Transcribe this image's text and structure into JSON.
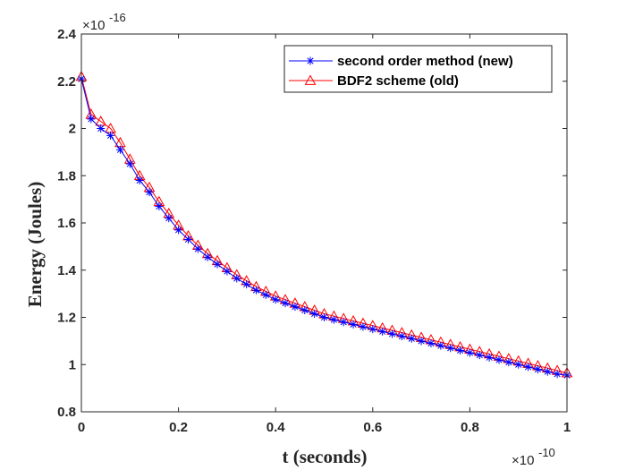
{
  "chart_data": {
    "type": "line",
    "xlabel": "t (seconds)",
    "ylabel": "Energy (Joules)",
    "x_exponent": "×10",
    "x_exponent_power": "-10",
    "y_exponent": "×10",
    "y_exponent_power": "-16",
    "xlim": [
      0,
      1
    ],
    "ylim": [
      0.8,
      2.4
    ],
    "x_ticks": [
      0,
      0.2,
      0.4,
      0.6,
      0.8,
      1
    ],
    "x_tick_labels": [
      "0",
      "0.2",
      "0.4",
      "0.6",
      "0.8",
      "1"
    ],
    "y_ticks": [
      0.8,
      1,
      1.2,
      1.4,
      1.6,
      1.8,
      2,
      2.2,
      2.4
    ],
    "y_tick_labels": [
      "0.8",
      "1",
      "1.2",
      "1.4",
      "1.6",
      "1.8",
      "2",
      "2.2",
      "2.4"
    ],
    "grid": false,
    "legend_position": "top-right",
    "x": [
      0,
      0.02,
      0.04,
      0.06,
      0.08,
      0.1,
      0.12,
      0.14,
      0.16,
      0.18,
      0.2,
      0.22,
      0.24,
      0.26,
      0.28,
      0.3,
      0.32,
      0.34,
      0.36,
      0.38,
      0.4,
      0.42,
      0.44,
      0.46,
      0.48,
      0.5,
      0.52,
      0.54,
      0.56,
      0.58,
      0.6,
      0.62,
      0.64,
      0.66,
      0.68,
      0.7,
      0.72,
      0.74,
      0.76,
      0.78,
      0.8,
      0.82,
      0.84,
      0.86,
      0.88,
      0.9,
      0.92,
      0.94,
      0.96,
      0.98,
      1
    ],
    "series": [
      {
        "name": "second order method (new)",
        "color": "#0000ff",
        "marker": "asterisk",
        "values": [
          2.21,
          2.04,
          2.0,
          1.97,
          1.91,
          1.85,
          1.78,
          1.73,
          1.67,
          1.62,
          1.57,
          1.53,
          1.49,
          1.455,
          1.425,
          1.395,
          1.365,
          1.34,
          1.315,
          1.295,
          1.275,
          1.26,
          1.245,
          1.23,
          1.215,
          1.2,
          1.19,
          1.18,
          1.17,
          1.16,
          1.15,
          1.14,
          1.13,
          1.12,
          1.11,
          1.1,
          1.09,
          1.08,
          1.07,
          1.06,
          1.05,
          1.04,
          1.03,
          1.02,
          1.01,
          1.0,
          0.99,
          0.98,
          0.97,
          0.96,
          0.955
        ]
      },
      {
        "name": "BDF2 scheme (old)",
        "color": "#ff0000",
        "marker": "triangle",
        "values": [
          2.22,
          2.06,
          2.03,
          2.0,
          1.94,
          1.87,
          1.8,
          1.75,
          1.69,
          1.64,
          1.59,
          1.545,
          1.505,
          1.47,
          1.44,
          1.41,
          1.38,
          1.355,
          1.33,
          1.31,
          1.29,
          1.275,
          1.26,
          1.245,
          1.23,
          1.215,
          1.205,
          1.195,
          1.185,
          1.175,
          1.165,
          1.155,
          1.145,
          1.135,
          1.125,
          1.115,
          1.105,
          1.095,
          1.085,
          1.075,
          1.065,
          1.055,
          1.045,
          1.035,
          1.025,
          1.015,
          1.005,
          0.995,
          0.985,
          0.975,
          0.965
        ]
      }
    ]
  }
}
